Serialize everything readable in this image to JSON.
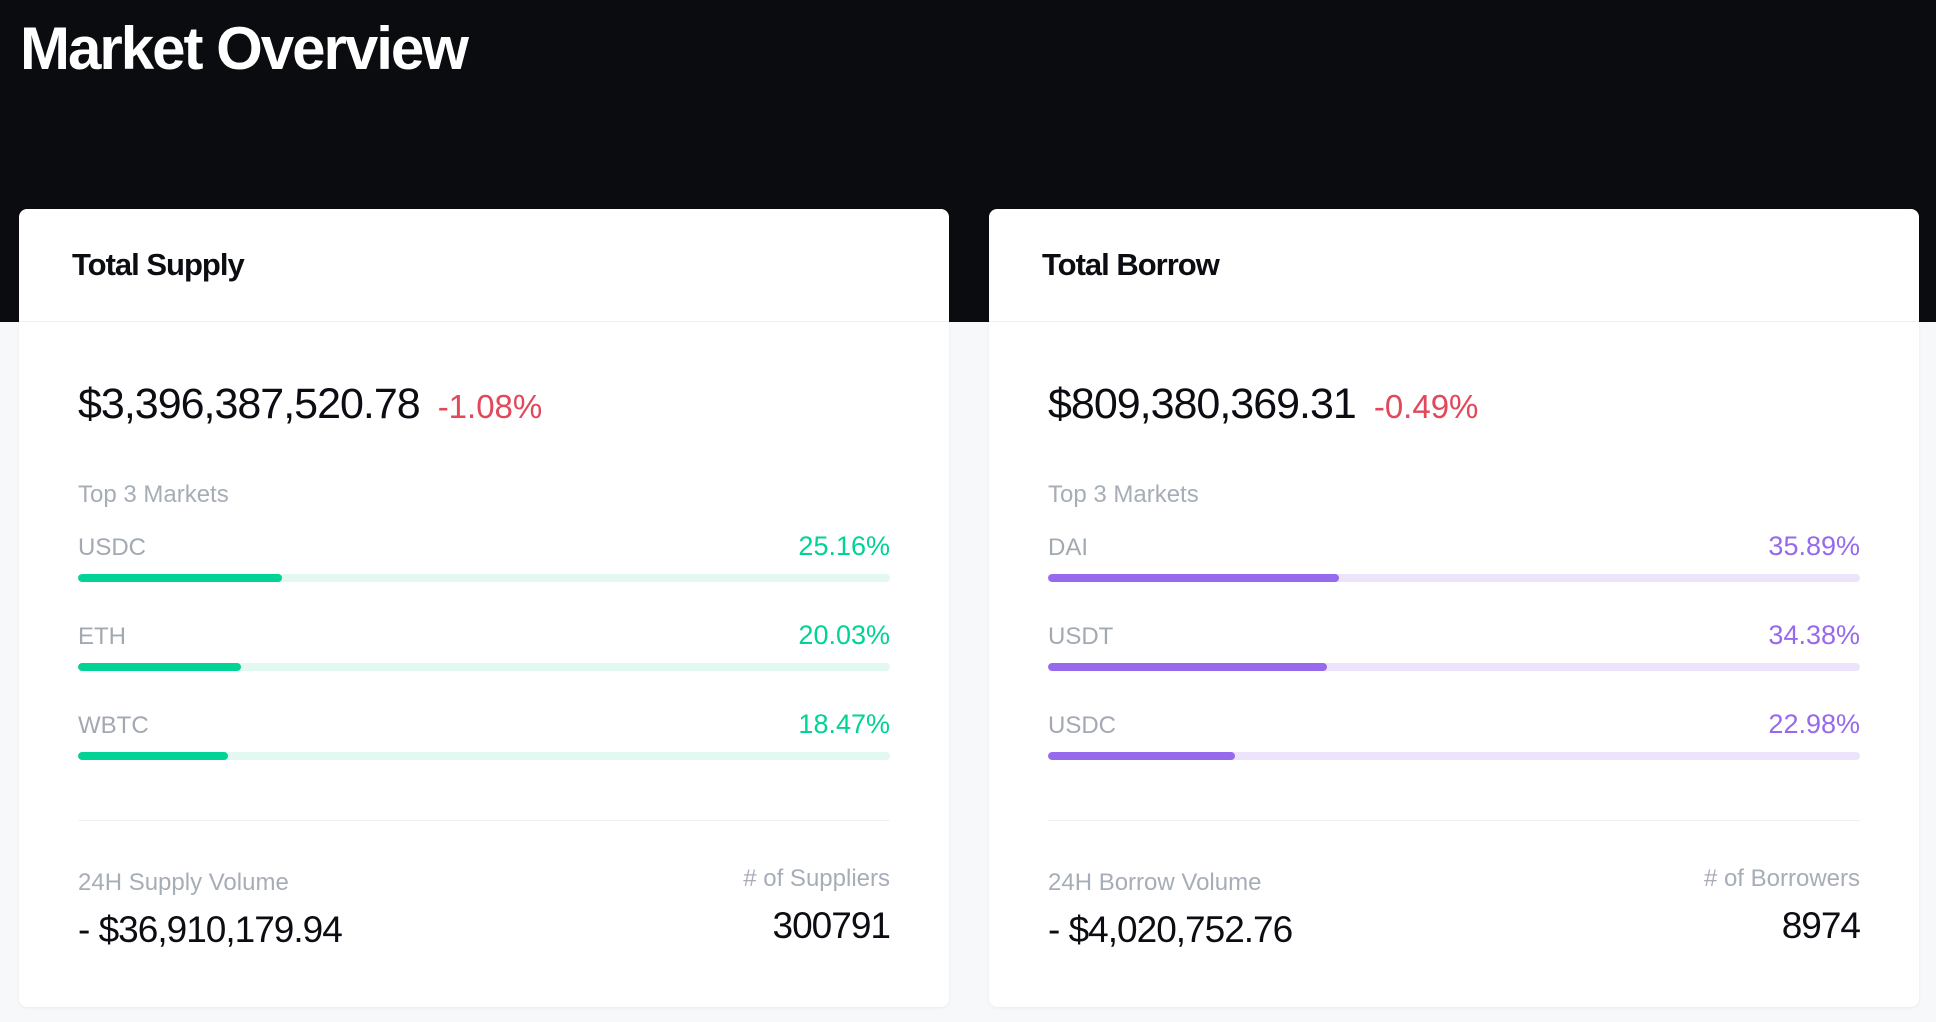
{
  "header": {
    "title": "Market Overview"
  },
  "colors": {
    "supply_accent": "#00d395",
    "borrow_accent": "#9669ed",
    "negative": "#e2475a"
  },
  "supply": {
    "title": "Total Supply",
    "total": "$3,396,387,520.78",
    "change": "-1.08%",
    "top_label": "Top 3 Markets",
    "markets": [
      {
        "name": "USDC",
        "pct": "25.16%",
        "share": 25.16
      },
      {
        "name": "ETH",
        "pct": "20.03%",
        "share": 20.03
      },
      {
        "name": "WBTC",
        "pct": "18.47%",
        "share": 18.47
      }
    ],
    "volume_label": "24H Supply Volume",
    "volume_value": "- $36,910,179.94",
    "count_label": "# of Suppliers",
    "count_value": "300791"
  },
  "borrow": {
    "title": "Total Borrow",
    "total": "$809,380,369.31",
    "change": "-0.49%",
    "top_label": "Top 3 Markets",
    "markets": [
      {
        "name": "DAI",
        "pct": "35.89%",
        "share": 35.89
      },
      {
        "name": "USDT",
        "pct": "34.38%",
        "share": 34.38
      },
      {
        "name": "USDC",
        "pct": "22.98%",
        "share": 22.98
      }
    ],
    "volume_label": "24H Borrow Volume",
    "volume_value": "- $4,020,752.76",
    "count_label": "# of Borrowers",
    "count_value": "8974"
  }
}
